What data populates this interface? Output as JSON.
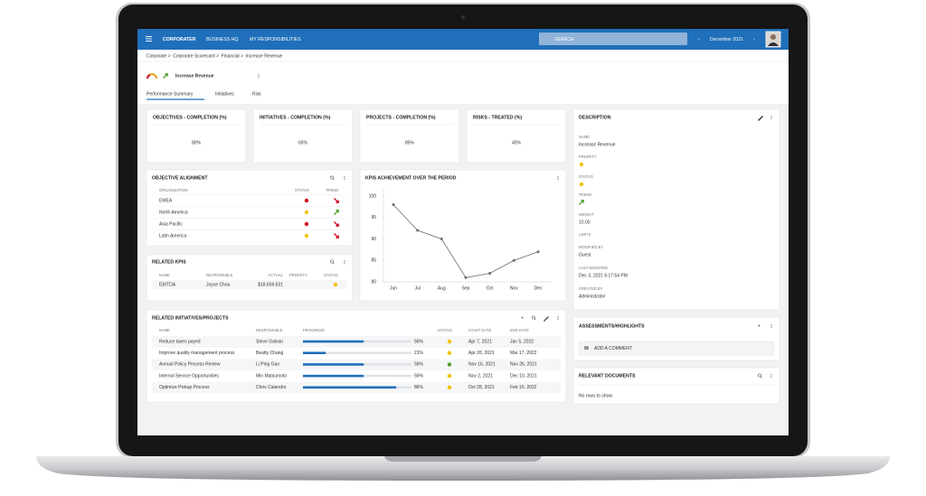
{
  "nav": {
    "logo": "CORPORATER",
    "items": [
      "BUSINESS HQ",
      "MY RESPONSIBILITIES"
    ],
    "search": "SEARCH",
    "period": "December 2021"
  },
  "breadcrumb": [
    "Corporate",
    "Corporate Scorecard",
    "Financial",
    "Increase Revenue"
  ],
  "page": {
    "title": "Increase Revenue",
    "tabs": [
      "Performance Summary",
      "Initiatives",
      "Risk"
    ]
  },
  "kpi_cards": [
    {
      "label": "OBJECTIVES - COMPLETION (%)",
      "value": "80%"
    },
    {
      "label": "INITIATIVES - COMPLETION (%)",
      "value": "65%"
    },
    {
      "label": "PROJECTS - COMPLETION (%)",
      "value": "85%"
    },
    {
      "label": "RISKS - TREATED (%)",
      "value": "45%"
    }
  ],
  "objective_alignment": {
    "title": "OBJECTIVE ALIGNMENT",
    "columns": [
      "ORGANIZATION",
      "STATUS",
      "TREND"
    ],
    "rows": [
      {
        "organization": "EMEA",
        "status": "red",
        "trend": "down"
      },
      {
        "organization": "North America",
        "status": "yellow",
        "trend": "up"
      },
      {
        "organization": "Asia Pacific",
        "status": "red",
        "trend": "down"
      },
      {
        "organization": "Latin America",
        "status": "yellow",
        "trend": "down"
      }
    ]
  },
  "related_kpis": {
    "title": "RELATED KPIS",
    "columns": [
      "NAME",
      "RESPONSIBLE",
      "ACTUAL",
      "PRIORITY",
      "STATUS"
    ],
    "rows": [
      {
        "name": "EBITDA",
        "responsible": "Joyce Chou",
        "actual": "$18,659,631",
        "status": "yellow"
      }
    ]
  },
  "kpi_chart": {
    "type": "line",
    "title": "KPIS ACHIEVEMENT OVER THE PERIOD",
    "categories": [
      "Jun",
      "Jul",
      "Aug",
      "Sep",
      "Oct",
      "Nov",
      "Dec"
    ],
    "values": [
      98,
      92,
      90,
      81,
      82,
      85,
      87
    ],
    "color": "#6b6b6b",
    "ylim": [
      80,
      100
    ],
    "yticks": [
      80,
      85,
      90,
      95,
      100
    ]
  },
  "initiatives": {
    "title": "RELATED INITIATIVES/PROJECTS",
    "columns": [
      "NAME",
      "RESPONSIBLE",
      "PROGRESS",
      "STATUS",
      "START DATE",
      "END DATE"
    ],
    "rows": [
      {
        "name": "Reduce taxes payed",
        "responsible": "Steve Galvan",
        "progress": 56,
        "progress_label": "56%",
        "status": "yellow",
        "start": "Apr 7, 2021",
        "end": "Jan 5, 2022"
      },
      {
        "name": "Improve quality management process",
        "responsible": "Beatty Chang",
        "progress": 21,
        "progress_label": "21%",
        "status": "yellow",
        "start": "Apr 28, 2021",
        "end": "Mar 17, 2022"
      },
      {
        "name": "Annual Policy Process Review",
        "responsible": "Li Ping Gao",
        "progress": 56,
        "progress_label": "56%",
        "status": "green",
        "start": "Nov 16, 2021",
        "end": "Nov 26, 2021"
      },
      {
        "name": "Internal Service Opportunities",
        "responsible": "Min Matsumoto",
        "progress": 56,
        "progress_label": "56%",
        "status": "yellow",
        "start": "Nov 2, 2021",
        "end": "Dec 10, 2021"
      },
      {
        "name": "Optimize Pickup Process",
        "responsible": "Chris Calandro",
        "progress": 86,
        "progress_label": "86%",
        "status": "yellow",
        "start": "Oct 28, 2021",
        "end": "Feb 10, 2022"
      }
    ]
  },
  "description": {
    "title": "DESCRIPTION",
    "fields": [
      {
        "label": "NAME",
        "value": "Increase Revenue"
      },
      {
        "label": "PRIORITY",
        "status": "yellow"
      },
      {
        "label": "STATUS",
        "status": "yellow"
      },
      {
        "label": "TREND",
        "trend": "up"
      },
      {
        "label": "WEIGHT",
        "value": "10.00"
      },
      {
        "label": "LIMITS"
      },
      {
        "label": "MODIFIED BY",
        "value": "Guest"
      },
      {
        "label": "LAST MODIFIED",
        "value": "Dec 3, 2021 6:17:54 PM"
      },
      {
        "label": "CREATED BY",
        "value": "Administrator"
      }
    ]
  },
  "assessments": {
    "title": "ASSESSMENTS/HIGHLIGHTS",
    "placeholder": "ADD A COMMENT"
  },
  "documents": {
    "title": "RELEVANT DOCUMENTS",
    "empty": "No rows to show."
  }
}
